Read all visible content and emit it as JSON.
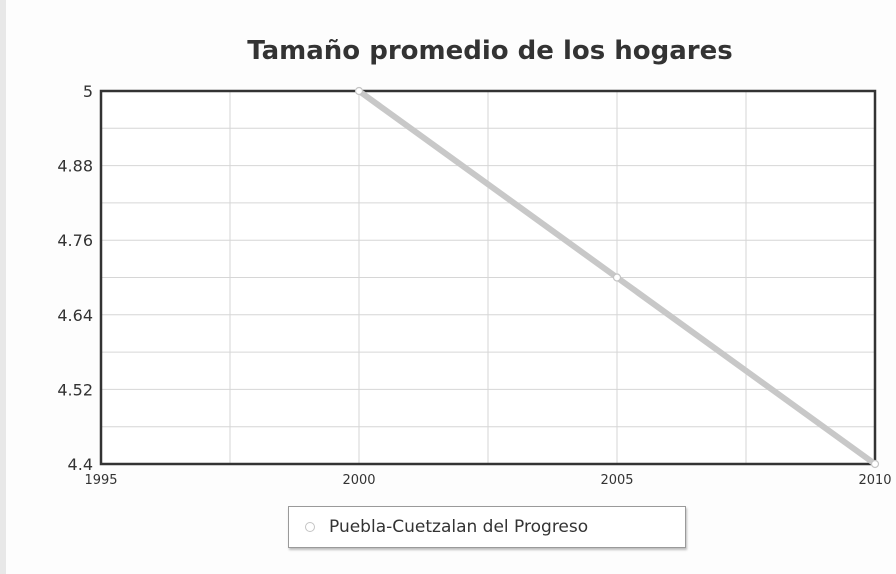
{
  "chart_data": {
    "type": "line",
    "title": "Tamaño promedio de los hogares",
    "xlabel": "",
    "ylabel": "",
    "xlim": [
      1995,
      2010
    ],
    "ylim": [
      4.4,
      5
    ],
    "x_ticks": [
      "1995",
      "2000",
      "2005",
      "2010"
    ],
    "y_ticks": [
      "4.4",
      "4.52",
      "4.64",
      "4.76",
      "4.88",
      "5"
    ],
    "grid": true,
    "legend_position": "bottom",
    "series": [
      {
        "name": "Puebla-Cuetzalan del Progreso",
        "x": [
          2000,
          2005,
          2010
        ],
        "y": [
          5,
          4.7,
          4.4
        ],
        "color": "#c8c8c8"
      }
    ]
  }
}
